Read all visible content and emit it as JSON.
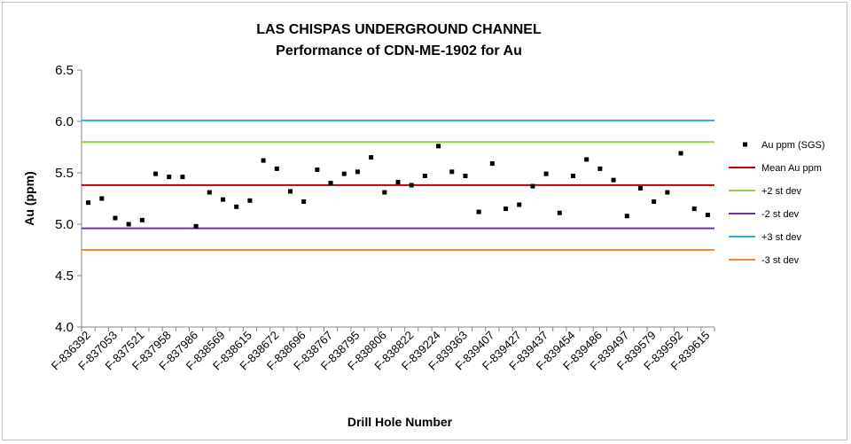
{
  "chart_data": {
    "type": "scatter",
    "title": "LAS CHISPAS UNDERGROUND CHANNEL",
    "subtitle": "Performance of CDN-ME-1902 for Au",
    "xlabel": "Drill Hole Number",
    "ylabel": "Au (ppm)",
    "ylim": [
      4.0,
      6.5
    ],
    "yticks": [
      "4.0",
      "4.5",
      "5.0",
      "5.5",
      "6.0",
      "6.5"
    ],
    "grid": false,
    "legend_position": "right",
    "x_tick_labels": [
      "F-836392",
      "F-837053",
      "F-837521",
      "F-837958",
      "F-837986",
      "F-838569",
      "F-838615",
      "F-838672",
      "F-838696",
      "F-838767",
      "F-838795",
      "F-838806",
      "F-838822",
      "F-839224",
      "F-839363",
      "F-839407",
      "F-839427",
      "F-839437",
      "F-839454",
      "F-839486",
      "F-839497",
      "F-839579",
      "F-839592",
      "F-839615"
    ],
    "series": [
      {
        "name": "Au ppm (SGS)",
        "type": "scatter",
        "color": "#000000",
        "values": [
          5.21,
          5.25,
          5.06,
          5.0,
          5.04,
          5.49,
          5.46,
          5.46,
          4.98,
          5.31,
          5.24,
          5.17,
          5.23,
          5.62,
          5.54,
          5.32,
          5.22,
          5.53,
          5.4,
          5.49,
          5.51,
          5.65,
          5.31,
          5.41,
          5.38,
          5.47,
          5.76,
          5.51,
          5.47,
          5.12,
          5.59,
          5.15,
          5.19,
          5.37,
          5.49,
          5.11,
          5.47,
          5.63,
          5.54,
          5.43,
          5.08,
          5.35,
          5.22,
          5.31,
          5.69,
          5.15,
          5.09
        ]
      },
      {
        "name": "Mean Au ppm",
        "type": "line",
        "color": "#c00000",
        "value": 5.38
      },
      {
        "name": "+2 st dev",
        "type": "line",
        "color": "#92d050",
        "value": 5.8
      },
      {
        "name": "-2 st dev",
        "type": "line",
        "color": "#7030a0",
        "value": 4.96
      },
      {
        "name": "+3 st dev",
        "type": "line",
        "color": "#31b0d5",
        "value": 6.01
      },
      {
        "name": "-3 st dev",
        "type": "line",
        "color": "#f0883a",
        "value": 4.75
      }
    ]
  }
}
